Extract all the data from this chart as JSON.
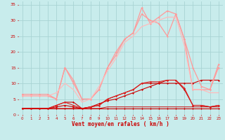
{
  "title": "",
  "xlabel": "Vent moyen/en rafales ( km/h )",
  "ylabel": "",
  "bg_color": "#c8ecec",
  "grid_color": "#a8d4d4",
  "xlim": [
    -0.5,
    23.5
  ],
  "ylim": [
    0,
    36
  ],
  "yticks": [
    0,
    5,
    10,
    15,
    20,
    25,
    30,
    35
  ],
  "xticks": [
    0,
    1,
    2,
    3,
    4,
    5,
    6,
    7,
    8,
    9,
    10,
    11,
    12,
    13,
    14,
    15,
    16,
    17,
    18,
    19,
    20,
    21,
    22,
    23
  ],
  "series": [
    {
      "x": [
        0,
        1,
        2,
        3,
        4,
        5,
        6,
        7,
        8,
        9,
        10,
        11,
        12,
        13,
        14,
        15,
        16,
        17,
        18,
        19,
        20,
        21,
        22,
        23
      ],
      "y": [
        2,
        2,
        2,
        2,
        2,
        2,
        2,
        2,
        2,
        2,
        2,
        2,
        2,
        2,
        2,
        2,
        2,
        2,
        2,
        2,
        2,
        2,
        2,
        2
      ],
      "color": "#cc0000",
      "lw": 0.8,
      "marker": "D",
      "ms": 1.5
    },
    {
      "x": [
        0,
        1,
        2,
        3,
        4,
        5,
        6,
        7,
        8,
        9,
        10,
        11,
        12,
        13,
        14,
        15,
        16,
        17,
        18,
        19,
        20,
        21,
        22,
        23
      ],
      "y": [
        2,
        2,
        2,
        2,
        2.5,
        3,
        2.5,
        2,
        2.5,
        3.5,
        4.5,
        5,
        6,
        7,
        8,
        9,
        10,
        10,
        10,
        10,
        10,
        11,
        11,
        11
      ],
      "color": "#cc0000",
      "lw": 0.8,
      "marker": "D",
      "ms": 1.5
    },
    {
      "x": [
        0,
        1,
        2,
        3,
        4,
        5,
        6,
        7,
        8,
        9,
        10,
        11,
        12,
        13,
        14,
        15,
        16,
        17,
        18,
        19,
        20,
        21,
        22,
        23
      ],
      "y": [
        2,
        2,
        2,
        2,
        3,
        4,
        4,
        2,
        2.5,
        3,
        5,
        6,
        7,
        8,
        10,
        10,
        10,
        11,
        11,
        8,
        3,
        3,
        2.5,
        3
      ],
      "color": "#cc0000",
      "lw": 0.8,
      "marker": "D",
      "ms": 1.5
    },
    {
      "x": [
        0,
        1,
        2,
        3,
        4,
        5,
        6,
        7,
        8,
        9,
        10,
        11,
        12,
        13,
        14,
        15,
        16,
        17,
        18,
        19,
        20,
        21,
        22,
        23
      ],
      "y": [
        2,
        2,
        2,
        2,
        3,
        4,
        3,
        2,
        2.5,
        3,
        5,
        6,
        7,
        8,
        10,
        10.5,
        10.5,
        11,
        11,
        8.5,
        3,
        3,
        2.5,
        3
      ],
      "color": "#dd2222",
      "lw": 0.8,
      "marker": "D",
      "ms": 1.5
    },
    {
      "x": [
        0,
        1,
        2,
        3,
        4,
        5,
        6,
        7,
        8,
        9,
        10,
        11,
        12,
        13,
        14,
        15,
        16,
        17,
        18,
        19,
        20,
        21,
        22,
        23
      ],
      "y": [
        2,
        2,
        2,
        2,
        2,
        2,
        2,
        2,
        2,
        2,
        2.5,
        2.5,
        2.5,
        2.5,
        2.5,
        2.5,
        2.5,
        2.5,
        2.5,
        2.5,
        2.5,
        2.5,
        2.5,
        2.5
      ],
      "color": "#cc0000",
      "lw": 0.7,
      "marker": null,
      "ms": 0
    },
    {
      "x": [
        0,
        1,
        2,
        3,
        4,
        5,
        6,
        7,
        8,
        9,
        10,
        11,
        12,
        13,
        14,
        15,
        16,
        17,
        18,
        19,
        20,
        21,
        22,
        23
      ],
      "y": [
        6,
        6,
        6,
        6,
        5,
        15,
        11,
        5,
        5,
        8,
        15,
        20,
        24,
        26,
        34,
        29,
        31,
        33,
        32,
        24,
        8,
        8,
        8,
        16
      ],
      "color": "#ff9999",
      "lw": 0.9,
      "marker": "D",
      "ms": 1.5
    },
    {
      "x": [
        0,
        1,
        2,
        3,
        4,
        5,
        6,
        7,
        8,
        9,
        10,
        11,
        12,
        13,
        14,
        15,
        16,
        17,
        18,
        19,
        20,
        21,
        22,
        23
      ],
      "y": [
        6.5,
        6.5,
        6.5,
        6.5,
        5,
        15,
        10,
        5,
        5,
        8,
        15,
        19,
        24,
        26,
        32,
        30,
        29,
        25,
        32,
        24,
        15,
        9,
        8,
        15
      ],
      "color": "#ff9999",
      "lw": 0.9,
      "marker": "D",
      "ms": 1.5
    },
    {
      "x": [
        0,
        1,
        2,
        3,
        4,
        5,
        6,
        7,
        8,
        9,
        10,
        11,
        12,
        13,
        14,
        15,
        16,
        17,
        18,
        19,
        20,
        21,
        22,
        23
      ],
      "y": [
        6,
        6,
        6,
        6,
        7,
        10,
        8,
        4,
        5,
        9,
        14,
        18,
        23,
        25,
        28,
        29,
        30,
        31,
        31,
        22,
        8,
        8,
        7,
        7
      ],
      "color": "#ffbbbb",
      "lw": 0.9,
      "marker": null,
      "ms": 0
    }
  ]
}
